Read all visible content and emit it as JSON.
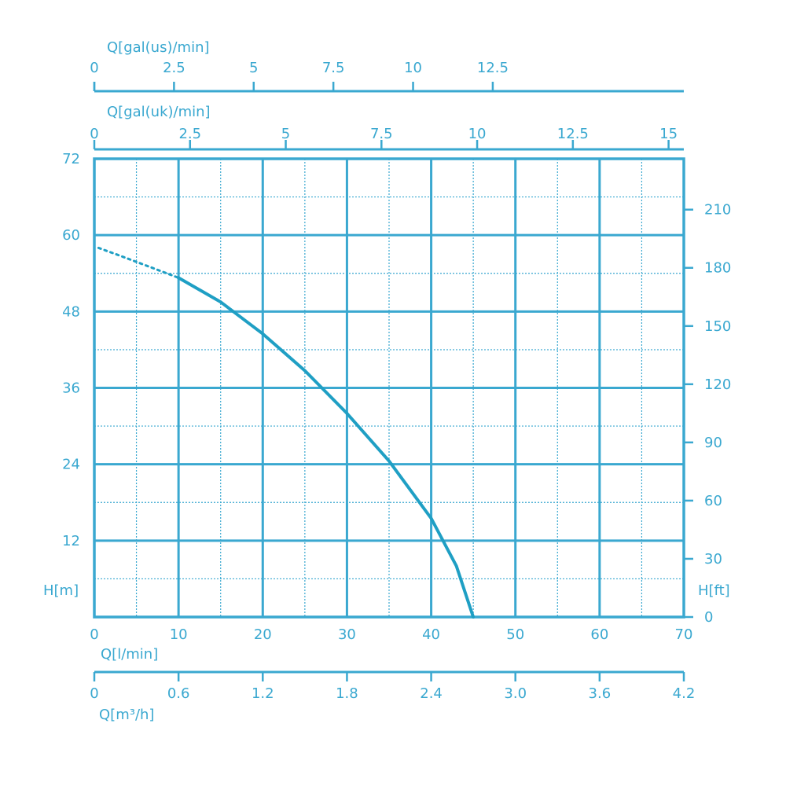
{
  "chart_data": {
    "type": "line",
    "title": "",
    "color": "#3aa8d0",
    "curve_color": "#1f9fc4",
    "x": {
      "label": "Q[l/min]",
      "range": [
        0,
        70
      ],
      "ticks": [
        0,
        10,
        20,
        30,
        40,
        50,
        60,
        70
      ],
      "tick_labels": [
        "0",
        "10",
        "20",
        "30",
        "40",
        "50",
        "60",
        "70"
      ]
    },
    "y": {
      "label": "H[m]",
      "range": [
        0,
        72
      ],
      "ticks": [
        12,
        24,
        36,
        48,
        60,
        72
      ],
      "tick_labels": [
        "12",
        "24",
        "36",
        "48",
        "60",
        "72"
      ]
    },
    "y_right": {
      "label": "H[ft]",
      "unit_per_primary": 3.2808,
      "ticks": [
        0,
        30,
        60,
        90,
        120,
        150,
        180,
        210
      ],
      "tick_labels": [
        "0",
        "30",
        "60",
        "90",
        "120",
        "150",
        "180",
        "210"
      ]
    },
    "x_top_us": {
      "label": "Q[gal(us)/min]",
      "lpm_per_unit": 3.785,
      "ticks": [
        0,
        2.5,
        5,
        7.5,
        10,
        12.5
      ],
      "tick_labels": [
        "0",
        "2.5",
        "5",
        "7.5",
        "10",
        "12.5"
      ]
    },
    "x_top_uk": {
      "label": "Q[gal(uk)/min]",
      "lpm_per_unit": 4.546,
      "ticks": [
        0,
        2.5,
        5,
        7.5,
        10,
        12.5,
        15
      ],
      "tick_labels": [
        "0",
        "2.5",
        "5",
        "7.5",
        "10",
        "12.5",
        "15"
      ]
    },
    "x_bottom_m3h": {
      "label": "Q[m³/h]",
      "lpm_per_unit": 16.6667,
      "ticks": [
        0,
        0.6,
        1.2,
        1.8,
        2.4,
        3.0,
        3.6,
        4.2
      ],
      "tick_labels": [
        "0",
        "0.6",
        "1.2",
        "1.8",
        "2.4",
        "3.0",
        "3.6",
        "4.2"
      ]
    },
    "series": [
      {
        "style": "dotted",
        "x": [
          0.5,
          3,
          6,
          10
        ],
        "y": [
          58,
          56.8,
          55.3,
          53.3
        ]
      },
      {
        "style": "solid",
        "x": [
          10,
          15,
          20,
          25,
          30,
          35,
          40,
          43,
          45
        ],
        "y": [
          53.3,
          49.5,
          44.5,
          38.7,
          32,
          24.5,
          15.5,
          8,
          0
        ]
      }
    ],
    "grid": true
  }
}
